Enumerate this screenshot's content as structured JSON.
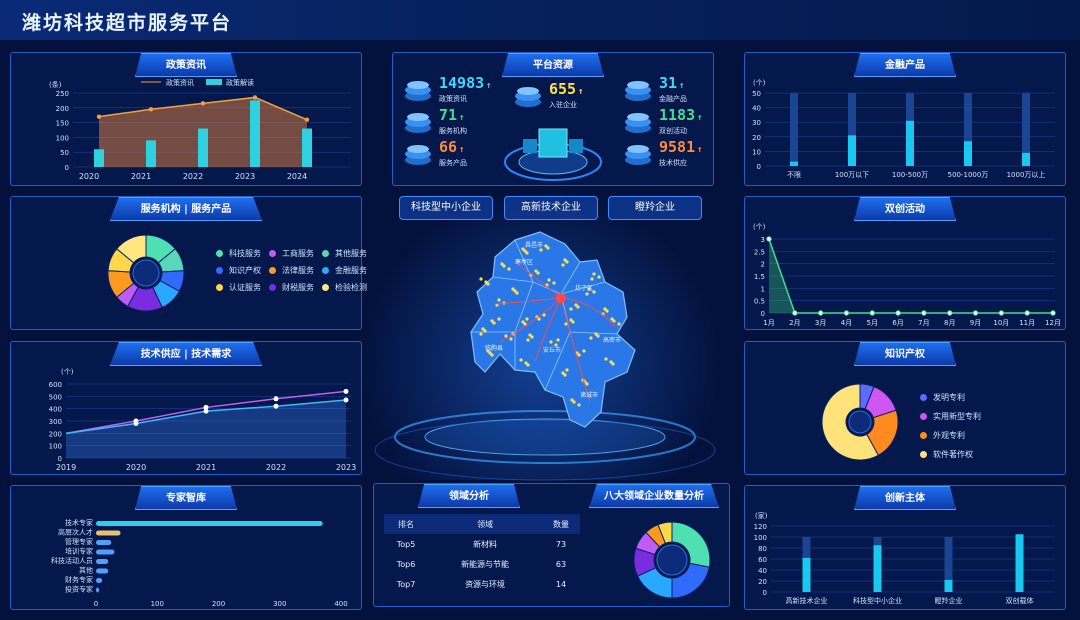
{
  "header": {
    "title": "潍坊科技超市服务平台"
  },
  "policy": {
    "title": "政策资讯",
    "legend": [
      "政策资讯",
      "政策解读"
    ],
    "yunit": "(条)",
    "yticks": [
      "0",
      "50",
      "100",
      "150",
      "200",
      "250"
    ],
    "chart_data": {
      "type": "bar",
      "categories": [
        "2020",
        "2021",
        "2022",
        "2023",
        "2024"
      ],
      "series": [
        {
          "name": "政策资讯",
          "values": [
            170,
            195,
            215,
            235,
            160
          ]
        },
        {
          "name": "政策解读",
          "values": [
            60,
            90,
            130,
            225,
            130
          ]
        }
      ],
      "ylim": [
        0,
        250
      ]
    }
  },
  "service": {
    "title": "服务机构 | 服务产品",
    "legend": [
      {
        "label": "科技服务",
        "color": "#4ee0b0"
      },
      {
        "label": "工商服务",
        "color": "#c05cf5"
      },
      {
        "label": "其他服务",
        "color": "#5ad6b8"
      },
      {
        "label": "知识产权",
        "color": "#2f6bff"
      },
      {
        "label": "法律服务",
        "color": "#ff9a1f"
      },
      {
        "label": "金融服务",
        "color": "#2aa8ff"
      },
      {
        "label": "认证服务",
        "color": "#ffd84a"
      },
      {
        "label": "财税服务",
        "color": "#7a2de0"
      },
      {
        "label": "检验检测",
        "color": "#ffe680"
      }
    ],
    "chart_data": {
      "type": "pie",
      "labels": [
        "科技服务",
        "其他服务",
        "知识产权",
        "金融服务",
        "财税服务",
        "工商服务",
        "法律服务",
        "认证服务",
        "检验检测"
      ],
      "values": [
        14,
        10,
        9,
        10,
        15,
        6,
        12,
        10,
        14
      ]
    }
  },
  "tech": {
    "title": "技术供应 | 技术需求",
    "yunit": "(个)",
    "yticks": [
      "0",
      "100",
      "200",
      "300",
      "400",
      "500",
      "600"
    ],
    "chart_data": {
      "type": "line",
      "x": [
        "2019",
        "2020",
        "2021",
        "2022",
        "2023"
      ],
      "series": [
        {
          "values": [
            200,
            300,
            410,
            480,
            540
          ]
        },
        {
          "values": [
            200,
            280,
            380,
            420,
            470
          ]
        }
      ],
      "ylim": [
        0,
        600
      ]
    }
  },
  "expert": {
    "title": "专家智库",
    "xticks": [
      "0",
      "100",
      "200",
      "300",
      "400"
    ],
    "chart_data": {
      "type": "bar",
      "categories": [
        "技术专家",
        "高层次人才",
        "管理专家",
        "培训专家",
        "科技活动人员",
        "其他",
        "财务专家",
        "投资专家"
      ],
      "values": [
        370,
        40,
        25,
        30,
        20,
        20,
        10,
        5
      ],
      "xlim": [
        0,
        400
      ]
    }
  },
  "resource": {
    "title": "平台资源",
    "stats": [
      {
        "num": "14983",
        "label": "政策资讯",
        "color": "#3fd7ff"
      },
      {
        "num": "71",
        "label": "服务机构",
        "color": "#3fdf8f"
      },
      {
        "num": "66",
        "label": "服务产品",
        "color": "#ff8a3a"
      },
      {
        "num": "655",
        "label": "入驻企业",
        "color": "#ffe045"
      },
      {
        "num": "31",
        "label": "金融产品",
        "color": "#3fd7ff"
      },
      {
        "num": "1183",
        "label": "双创活动",
        "color": "#3fdf8f"
      },
      {
        "num": "9581",
        "label": "技术供应",
        "color": "#ff8a3a"
      }
    ]
  },
  "tabs": [
    "科技型中小企业",
    "高新技术企业",
    "瞪羚企业"
  ],
  "map": {
    "labels": [
      "寒亭区",
      "坊子区",
      "昌邑市",
      "安丘市",
      "临朐县",
      "诸城市",
      "高密市"
    ]
  },
  "domain": {
    "title": "领域分析",
    "headers": [
      "排名",
      "领域",
      "数量"
    ],
    "rows": [
      [
        "Top5",
        "新材料",
        "73"
      ],
      [
        "Top6",
        "新能源与节能",
        "63"
      ],
      [
        "Top7",
        "资源与环境",
        "14"
      ]
    ]
  },
  "eight": {
    "title": "八大领域企业数量分析",
    "chart_data": {
      "type": "pie",
      "values": [
        28,
        22,
        18,
        12,
        8,
        6,
        6
      ]
    }
  },
  "finance": {
    "title": "金融产品",
    "yunit": "(个)",
    "yticks": [
      "0",
      "10",
      "20",
      "30",
      "40",
      "50"
    ],
    "chart_data": {
      "type": "bar",
      "categories": [
        "不限",
        "100万以下",
        "100-500万",
        "500-1000万",
        "1000万以上"
      ],
      "values": [
        3,
        21,
        31,
        17,
        9
      ],
      "ylim": [
        0,
        50
      ]
    }
  },
  "activity": {
    "title": "双创活动",
    "yunit": "(个)",
    "yticks": [
      "0",
      "0.5",
      "1",
      "1.5",
      "2",
      "2.5",
      "3"
    ],
    "chart_data": {
      "type": "line",
      "categories": [
        "1月",
        "2月",
        "3月",
        "4月",
        "5月",
        "6月",
        "7月",
        "8月",
        "9月",
        "10月",
        "11月",
        "12月"
      ],
      "values": [
        3,
        0,
        0,
        0,
        0,
        0,
        0,
        0,
        0,
        0,
        0,
        0
      ],
      "ylim": [
        0,
        3
      ]
    }
  },
  "ip": {
    "title": "知识产权",
    "legend": [
      {
        "label": "发明专利",
        "color": "#5b6cff"
      },
      {
        "label": "实用新型专利",
        "color": "#d155f0"
      },
      {
        "label": "外观专利",
        "color": "#ff8a1f"
      },
      {
        "label": "软件著作权",
        "color": "#ffe27a"
      }
    ],
    "chart_data": {
      "type": "pie",
      "labels": [
        "发明专利",
        "实用新型专利",
        "外观专利",
        "软件著作权"
      ],
      "values": [
        6,
        14,
        22,
        58
      ]
    }
  },
  "innov": {
    "title": "创新主体",
    "yunit": "(家)",
    "yticks": [
      "0",
      "20",
      "40",
      "60",
      "80",
      "100",
      "120"
    ],
    "chart_data": {
      "type": "bar",
      "categories": [
        "高新技术企业",
        "科技型中小企业",
        "瞪羚企业",
        "双创载体"
      ],
      "values": [
        62,
        85,
        22,
        105
      ],
      "ylim": [
        0,
        120
      ]
    }
  }
}
